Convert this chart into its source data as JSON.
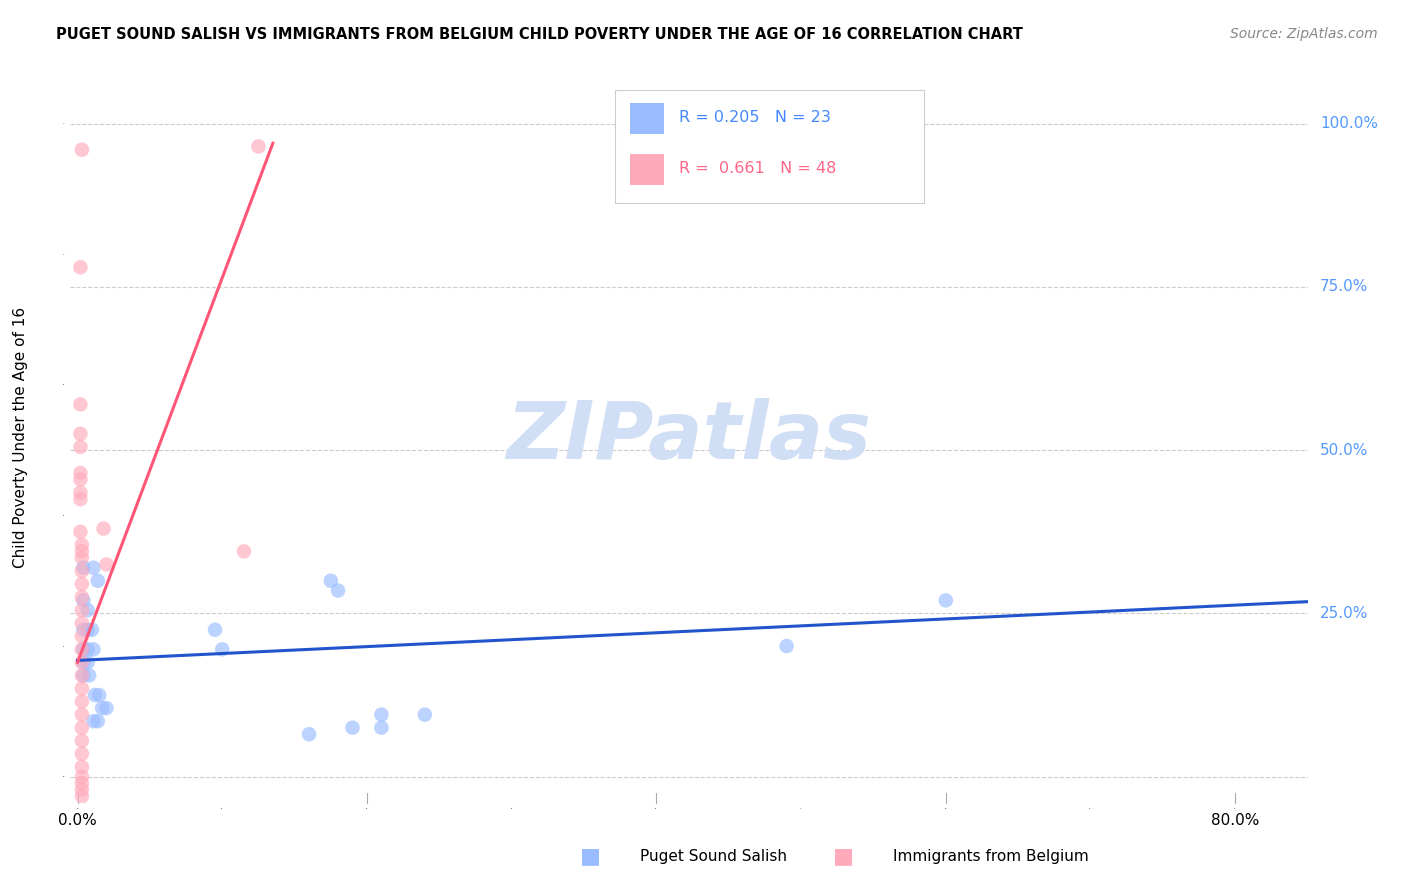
{
  "title": "PUGET SOUND SALISH VS IMMIGRANTS FROM BELGIUM CHILD POVERTY UNDER THE AGE OF 16 CORRELATION CHART",
  "source": "Source: ZipAtlas.com",
  "ylabel": "Child Poverty Under the Age of 16",
  "xlim": [
    -0.005,
    0.85
  ],
  "ylim": [
    -0.04,
    1.08
  ],
  "color_blue": "#99bbff",
  "color_pink": "#ffaabb",
  "color_blue_line": "#2255cc",
  "color_pink_line": "#ff5577",
  "color_blue_text": "#4488ff",
  "color_pink_text": "#ff6688",
  "color_yaxis": "#5599ff",
  "watermark_color": "#d0dff5",
  "blue_points": [
    [
      0.004,
      0.32
    ],
    [
      0.011,
      0.32
    ],
    [
      0.014,
      0.3
    ],
    [
      0.004,
      0.27
    ],
    [
      0.007,
      0.255
    ],
    [
      0.004,
      0.225
    ],
    [
      0.007,
      0.225
    ],
    [
      0.01,
      0.225
    ],
    [
      0.004,
      0.195
    ],
    [
      0.007,
      0.195
    ],
    [
      0.011,
      0.195
    ],
    [
      0.004,
      0.175
    ],
    [
      0.007,
      0.175
    ],
    [
      0.004,
      0.155
    ],
    [
      0.008,
      0.155
    ],
    [
      0.012,
      0.125
    ],
    [
      0.015,
      0.125
    ],
    [
      0.02,
      0.105
    ],
    [
      0.017,
      0.105
    ],
    [
      0.014,
      0.085
    ],
    [
      0.011,
      0.085
    ],
    [
      0.6,
      0.27
    ],
    [
      0.49,
      0.2
    ],
    [
      0.175,
      0.3
    ],
    [
      0.18,
      0.285
    ],
    [
      0.095,
      0.225
    ],
    [
      0.1,
      0.195
    ],
    [
      0.21,
      0.095
    ],
    [
      0.24,
      0.095
    ],
    [
      0.21,
      0.075
    ],
    [
      0.19,
      0.075
    ],
    [
      0.16,
      0.065
    ]
  ],
  "pink_points": [
    [
      0.003,
      0.96
    ],
    [
      0.002,
      0.78
    ],
    [
      0.002,
      0.57
    ],
    [
      0.002,
      0.525
    ],
    [
      0.002,
      0.505
    ],
    [
      0.002,
      0.465
    ],
    [
      0.002,
      0.455
    ],
    [
      0.002,
      0.435
    ],
    [
      0.002,
      0.425
    ],
    [
      0.002,
      0.375
    ],
    [
      0.003,
      0.355
    ],
    [
      0.003,
      0.345
    ],
    [
      0.003,
      0.335
    ],
    [
      0.003,
      0.315
    ],
    [
      0.003,
      0.295
    ],
    [
      0.003,
      0.275
    ],
    [
      0.003,
      0.255
    ],
    [
      0.003,
      0.235
    ],
    [
      0.003,
      0.215
    ],
    [
      0.003,
      0.195
    ],
    [
      0.003,
      0.175
    ],
    [
      0.003,
      0.155
    ],
    [
      0.003,
      0.135
    ],
    [
      0.003,
      0.115
    ],
    [
      0.003,
      0.095
    ],
    [
      0.003,
      0.075
    ],
    [
      0.003,
      0.055
    ],
    [
      0.003,
      0.035
    ],
    [
      0.003,
      0.015
    ],
    [
      0.003,
      0.0
    ],
    [
      0.003,
      -0.01
    ],
    [
      0.003,
      -0.02
    ],
    [
      0.003,
      -0.03
    ],
    [
      0.018,
      0.38
    ],
    [
      0.02,
      0.325
    ],
    [
      0.125,
      0.965
    ],
    [
      0.115,
      0.345
    ]
  ],
  "blue_line": [
    [
      0.0,
      0.178
    ],
    [
      0.85,
      0.268
    ]
  ],
  "pink_line": [
    [
      0.0,
      0.175
    ],
    [
      0.135,
      0.97
    ]
  ]
}
